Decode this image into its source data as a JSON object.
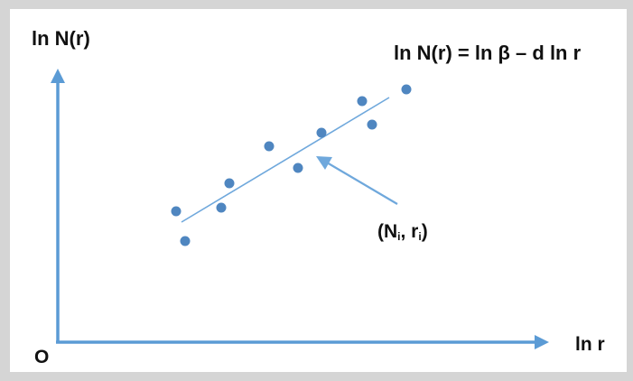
{
  "y_axis_label": "ln N(r)",
  "x_axis_label": "ln r",
  "origin_label": "O",
  "equation": "ln N(r) = ln β – d ln r",
  "point_label": {
    "open": "(N",
    "sub_i": "i",
    "mid": ", r",
    "sub_i2": "i",
    "close": ")"
  },
  "colors": {
    "axis": "#5b9bd5",
    "points": "#4f86c0",
    "fit_line": "#6fa8dc",
    "pointer_arrow": "#6fa8dc",
    "text": "#111111",
    "border": "#d5d5d5"
  }
}
